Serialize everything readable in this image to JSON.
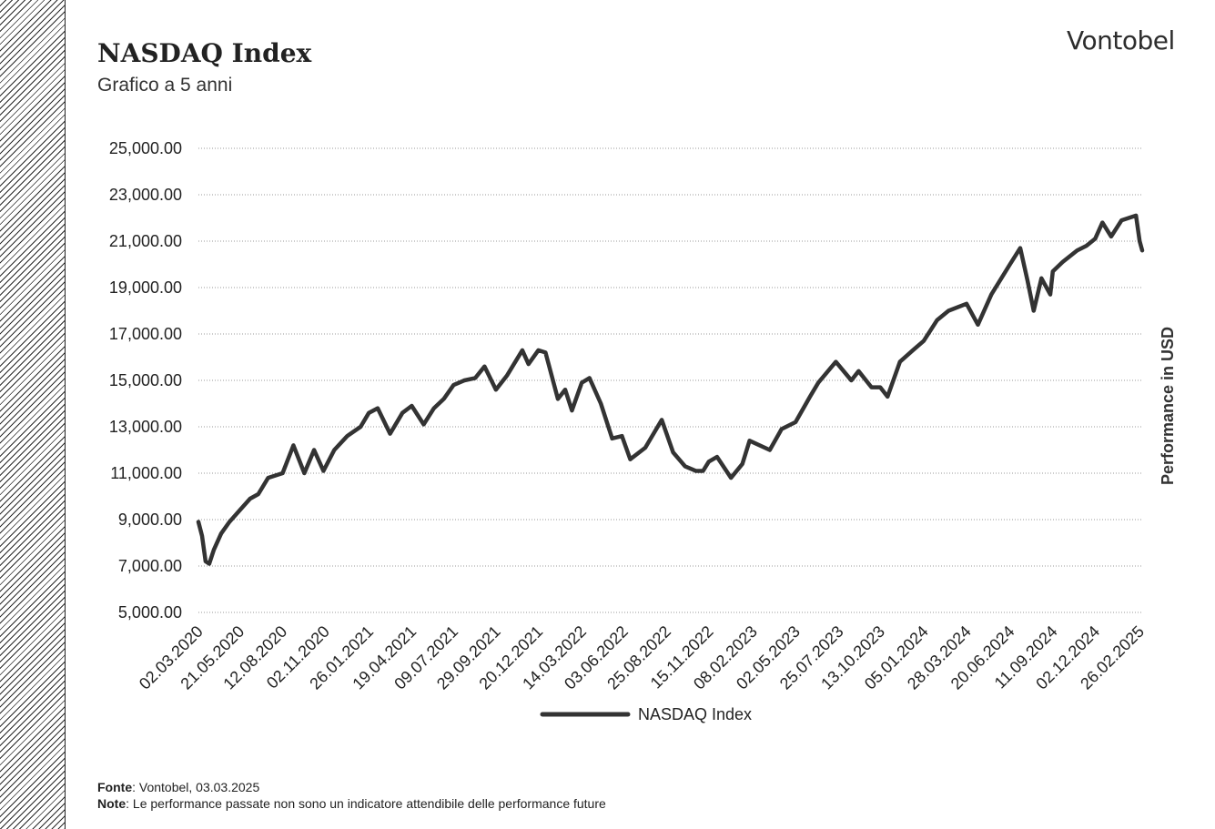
{
  "header": {
    "title": "NASDAQ Index",
    "subtitle": "Grafico a 5 anni",
    "logo": "Vontobel"
  },
  "footer": {
    "source_label": "Fonte",
    "source_text": ": Vontobel, 03.03.2025",
    "note_label": "Note",
    "note_text": ": Le performance passate non sono un indicatore attendibile delle performance future"
  },
  "chart_data": {
    "type": "line",
    "title": "NASDAQ Index",
    "subtitle": "Grafico a 5 anni",
    "ylabel": "Performance in USD",
    "ylim": [
      5000,
      25000
    ],
    "yticks": [
      "5,000.00",
      "7,000.00",
      "9,000.00",
      "11,000.00",
      "13,000.00",
      "15,000.00",
      "17,000.00",
      "19,000.00",
      "21,000.00",
      "23,000.00",
      "25,000.00"
    ],
    "xticks": [
      "02.03.2020",
      "21.05.2020",
      "12.08.2020",
      "02.11.2020",
      "26.01.2021",
      "19.04.2021",
      "09.07.2021",
      "29.09.2021",
      "20.12.2021",
      "14.03.2022",
      "03.06.2022",
      "25.08.2022",
      "15.11.2022",
      "08.02.2023",
      "02.05.2023",
      "25.07.2023",
      "13.10.2023",
      "05.01.2024",
      "28.03.2024",
      "20.06.2024",
      "11.09.2024",
      "02.12.2024",
      "26.02.2025"
    ],
    "grid": true,
    "legend_position": "bottom",
    "colors": {
      "line": "#333333",
      "grid": "#9a9a9a"
    },
    "series": [
      {
        "name": "NASDAQ Index",
        "x": [
          "2020-03-02",
          "2020-03-09",
          "2020-03-16",
          "2020-03-23",
          "2020-04-01",
          "2020-04-15",
          "2020-05-01",
          "2020-05-21",
          "2020-06-10",
          "2020-06-26",
          "2020-07-15",
          "2020-08-12",
          "2020-09-02",
          "2020-09-23",
          "2020-10-12",
          "2020-10-30",
          "2020-11-20",
          "2020-12-15",
          "2021-01-10",
          "2021-01-26",
          "2021-02-12",
          "2021-03-08",
          "2021-04-01",
          "2021-04-19",
          "2021-05-12",
          "2021-06-01",
          "2021-06-20",
          "2021-07-09",
          "2021-07-30",
          "2021-08-20",
          "2021-09-07",
          "2021-09-29",
          "2021-10-20",
          "2021-11-19",
          "2021-12-01",
          "2021-12-20",
          "2022-01-03",
          "2022-01-27",
          "2022-02-10",
          "2022-02-23",
          "2022-03-14",
          "2022-03-29",
          "2022-04-20",
          "2022-05-12",
          "2022-05-31",
          "2022-06-16",
          "2022-07-15",
          "2022-08-16",
          "2022-09-07",
          "2022-09-30",
          "2022-10-21",
          "2022-11-04",
          "2022-11-15",
          "2022-12-01",
          "2022-12-28",
          "2023-01-19",
          "2023-02-02",
          "2023-03-13",
          "2023-04-05",
          "2023-05-02",
          "2023-05-30",
          "2023-06-15",
          "2023-07-19",
          "2023-08-18",
          "2023-09-01",
          "2023-09-26",
          "2023-10-13",
          "2023-10-27",
          "2023-11-20",
          "2023-12-15",
          "2024-01-05",
          "2024-01-31",
          "2024-02-22",
          "2024-03-28",
          "2024-04-19",
          "2024-05-15",
          "2024-06-20",
          "2024-07-10",
          "2024-07-24",
          "2024-08-05",
          "2024-08-20",
          "2024-09-06",
          "2024-09-11",
          "2024-09-30",
          "2024-10-28",
          "2024-11-15",
          "2024-12-02",
          "2024-12-16",
          "2025-01-02",
          "2025-01-22",
          "2025-02-19",
          "2025-02-26",
          "2025-03-03"
        ],
        "values": [
          8900,
          8300,
          7200,
          7100,
          7700,
          8400,
          8900,
          9400,
          9900,
          10100,
          10800,
          11000,
          12200,
          11000,
          12000,
          11100,
          12000,
          12600,
          13000,
          13600,
          13800,
          12700,
          13600,
          13900,
          13100,
          13800,
          14200,
          14800,
          15000,
          15100,
          15600,
          14600,
          15200,
          16300,
          15700,
          16300,
          16200,
          14200,
          14600,
          13700,
          14900,
          15100,
          14000,
          12500,
          12600,
          11600,
          12100,
          13300,
          11900,
          11300,
          11100,
          11100,
          11500,
          11700,
          10800,
          11400,
          12400,
          12000,
          12900,
          13200,
          14300,
          14900,
          15800,
          15000,
          15400,
          14700,
          14700,
          14300,
          15800,
          16300,
          16700,
          17600,
          18000,
          18300,
          17400,
          18700,
          20000,
          20700,
          19300,
          18000,
          19400,
          18700,
          19700,
          20100,
          20600,
          20800,
          21100,
          21800,
          21200,
          21900,
          22100,
          21000,
          20600
        ]
      }
    ]
  }
}
